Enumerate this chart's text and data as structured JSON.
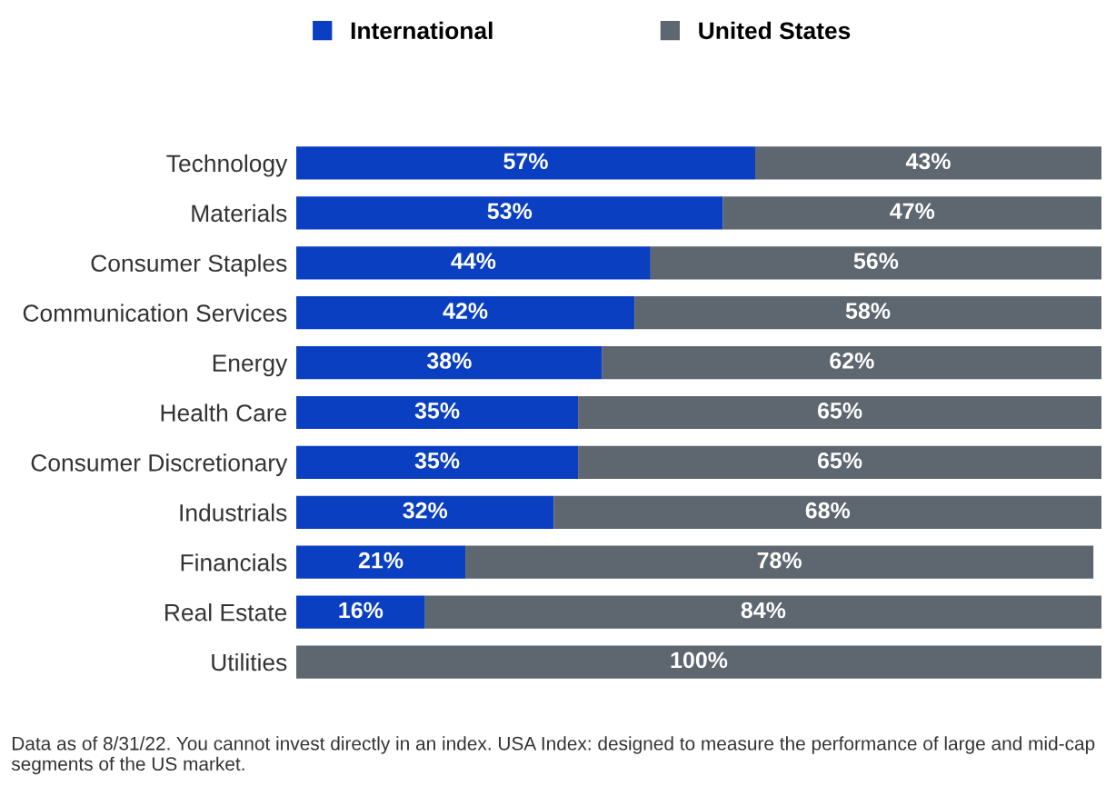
{
  "chart_data": {
    "type": "bar",
    "orientation": "horizontal",
    "stacked": true,
    "categories": [
      "Technology",
      "Materials",
      "Consumer Staples",
      "Communication Services",
      "Energy",
      "Health Care",
      "Consumer Discretionary",
      "Industrials",
      "Financials",
      "Real Estate",
      "Utilities"
    ],
    "series": [
      {
        "name": "International",
        "color": "#0a3fc2",
        "values": [
          57,
          53,
          44,
          42,
          38,
          35,
          35,
          32,
          21,
          16,
          0
        ],
        "value_labels": [
          "57%",
          "53%",
          "44%",
          "42%",
          "38%",
          "35%",
          "35%",
          "32%",
          "21%",
          "16%",
          null
        ]
      },
      {
        "name": "United States",
        "color": "#5e6670",
        "values": [
          43,
          47,
          56,
          58,
          62,
          65,
          65,
          68,
          78,
          84,
          100
        ],
        "value_labels": [
          "43%",
          "47%",
          "56%",
          "58%",
          "62%",
          "65%",
          "65%",
          "68%",
          "78%",
          "84%",
          "100%"
        ]
      }
    ],
    "xlim": [
      0,
      100
    ],
    "tick_labels": "y",
    "grid": false,
    "legend": "top left",
    "annotations": [
      "Data as of 8/31/22. You cannot invest directly in an index. USA Index: designed to measure the performance of large and mid-cap segments of the US market."
    ]
  }
}
